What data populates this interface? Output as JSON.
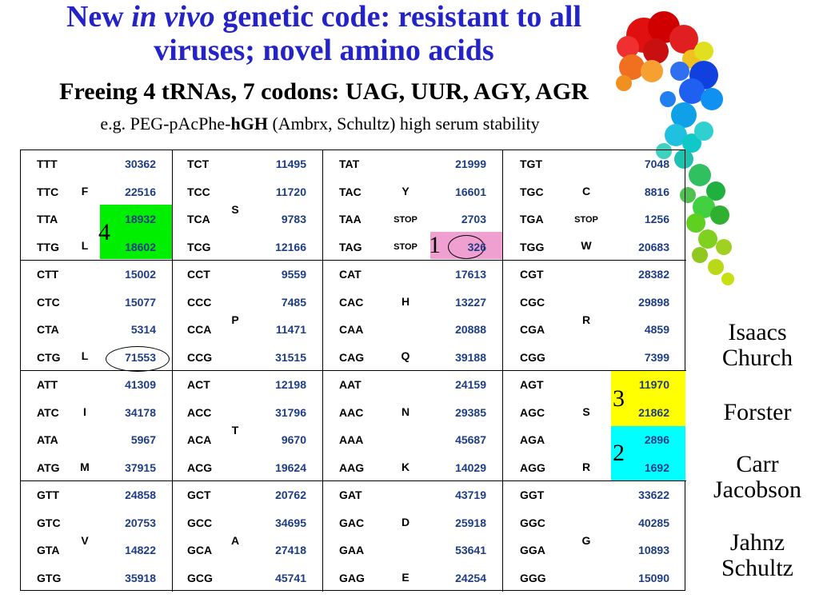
{
  "title": {
    "part1": "New ",
    "italic": "in vivo",
    "part2": " genetic code: resistant to all",
    "line2": "viruses; novel amino acids"
  },
  "subtitle": "Freeing  4 tRNAs, 7 codons: UAG, UUR, AGY, AGR",
  "subline": {
    "prefix": "e.g. PEG-pAcPhe-",
    "bold": "hGH",
    "suffix": "  (Ambrx, Schultz) high serum stability"
  },
  "colors": {
    "title": "#2323c8",
    "counts": "#1e3d85",
    "green": "#00ee00",
    "pink": "#f0a0d0",
    "yellow": "#ffff00",
    "cyan": "#00ffff"
  },
  "table": {
    "blocks": [
      {
        "rows": [
          [
            {
              "codon": "TTT",
              "count": "30362"
            },
            {
              "codon": "TCT",
              "count": "11495"
            },
            {
              "codon": "TAT",
              "count": "21999"
            },
            {
              "codon": "TGT",
              "count": "7048"
            }
          ],
          [
            {
              "codon": "TTC",
              "count": "22516"
            },
            {
              "codon": "TCC",
              "count": "11720"
            },
            {
              "codon": "TAC",
              "count": "16601"
            },
            {
              "codon": "TGC",
              "count": "8816"
            }
          ],
          [
            {
              "codon": "TTA",
              "count": "18932"
            },
            {
              "codon": "TCA",
              "count": "9783"
            },
            {
              "codon": "TAA",
              "count": "2703"
            },
            {
              "codon": "TGA",
              "count": "1256"
            }
          ],
          [
            {
              "codon": "TTG",
              "count": "18602"
            },
            {
              "codon": "TCG",
              "count": "12166"
            },
            {
              "codon": "TAG",
              "count": "326"
            },
            {
              "codon": "TGG",
              "count": "20683"
            }
          ]
        ]
      },
      {
        "rows": [
          [
            {
              "codon": "CTT",
              "count": "15002"
            },
            {
              "codon": "CCT",
              "count": "9559"
            },
            {
              "codon": "CAT",
              "count": "17613"
            },
            {
              "codon": "CGT",
              "count": "28382"
            }
          ],
          [
            {
              "codon": "CTC",
              "count": "15077"
            },
            {
              "codon": "CCC",
              "count": "7485"
            },
            {
              "codon": "CAC",
              "count": "13227"
            },
            {
              "codon": "CGC",
              "count": "29898"
            }
          ],
          [
            {
              "codon": "CTA",
              "count": "5314"
            },
            {
              "codon": "CCA",
              "count": "11471"
            },
            {
              "codon": "CAA",
              "count": "20888"
            },
            {
              "codon": "CGA",
              "count": "4859"
            }
          ],
          [
            {
              "codon": "CTG",
              "count": "71553"
            },
            {
              "codon": "CCG",
              "count": "31515"
            },
            {
              "codon": "CAG",
              "count": "39188"
            },
            {
              "codon": "CGG",
              "count": "7399"
            }
          ]
        ]
      },
      {
        "rows": [
          [
            {
              "codon": "ATT",
              "count": "41309"
            },
            {
              "codon": "ACT",
              "count": "12198"
            },
            {
              "codon": "AAT",
              "count": "24159"
            },
            {
              "codon": "AGT",
              "count": "11970"
            }
          ],
          [
            {
              "codon": "ATC",
              "count": "34178"
            },
            {
              "codon": "ACC",
              "count": "31796"
            },
            {
              "codon": "AAC",
              "count": "29385"
            },
            {
              "codon": "AGC",
              "count": "21862"
            }
          ],
          [
            {
              "codon": "ATA",
              "count": "5967"
            },
            {
              "codon": "ACA",
              "count": "9670"
            },
            {
              "codon": "AAA",
              "count": "45687"
            },
            {
              "codon": "AGA",
              "count": "2896"
            }
          ],
          [
            {
              "codon": "ATG",
              "count": "37915"
            },
            {
              "codon": "ACG",
              "count": "19624"
            },
            {
              "codon": "AAG",
              "count": "14029"
            },
            {
              "codon": "AGG",
              "count": "1692"
            }
          ]
        ]
      },
      {
        "rows": [
          [
            {
              "codon": "GTT",
              "count": "24858"
            },
            {
              "codon": "GCT",
              "count": "20762"
            },
            {
              "codon": "GAT",
              "count": "43719"
            },
            {
              "codon": "GGT",
              "count": "33622"
            }
          ],
          [
            {
              "codon": "GTC",
              "count": "20753"
            },
            {
              "codon": "GCC",
              "count": "34695"
            },
            {
              "codon": "GAC",
              "count": "25918"
            },
            {
              "codon": "GGC",
              "count": "40285"
            }
          ],
          [
            {
              "codon": "GTA",
              "count": "14822"
            },
            {
              "codon": "GCA",
              "count": "27418"
            },
            {
              "codon": "GAA",
              "count": "53641"
            },
            {
              "codon": "GGA",
              "count": "10893"
            }
          ],
          [
            {
              "codon": "GTG",
              "count": "35918"
            },
            {
              "codon": "GCG",
              "count": "45741"
            },
            {
              "codon": "GAG",
              "count": "24254"
            },
            {
              "codon": "GGG",
              "count": "15090"
            }
          ]
        ]
      }
    ],
    "amino_acids": {
      "b0c0_F": "F",
      "b0c0_L": "L",
      "b0c1_S": "S",
      "b0c2_Y": "Y",
      "b0c2_stop1": "STOP",
      "b0c2_stop2": "STOP",
      "b0c3_C": "C",
      "b0c3_stop": "STOP",
      "b0c3_W": "W",
      "b1c0_L": "L",
      "b1c1_P": "P",
      "b1c2_H": "H",
      "b1c2_Q": "Q",
      "b1c3_R": "R",
      "b2c0_I": "I",
      "b2c0_M": "M",
      "b2c1_T": "T",
      "b2c2_N": "N",
      "b2c2_K": "K",
      "b2c3_S": "S",
      "b2c3_R": "R",
      "b3c0_V": "V",
      "b3c1_A": "A",
      "b3c2_D": "D",
      "b3c2_E": "E",
      "b3c3_G": "G"
    }
  },
  "markers": {
    "n1": "1",
    "n2": "2",
    "n3": "3",
    "n4": "4"
  },
  "names": {
    "g1_l1": "Isaacs",
    "g1_l2": "Church",
    "g2": "Forster",
    "g3_l1": "Carr",
    "g3_l2": "Jacobson",
    "g4_l1": "Jahnz",
    "g4_l2": "Schultz"
  }
}
